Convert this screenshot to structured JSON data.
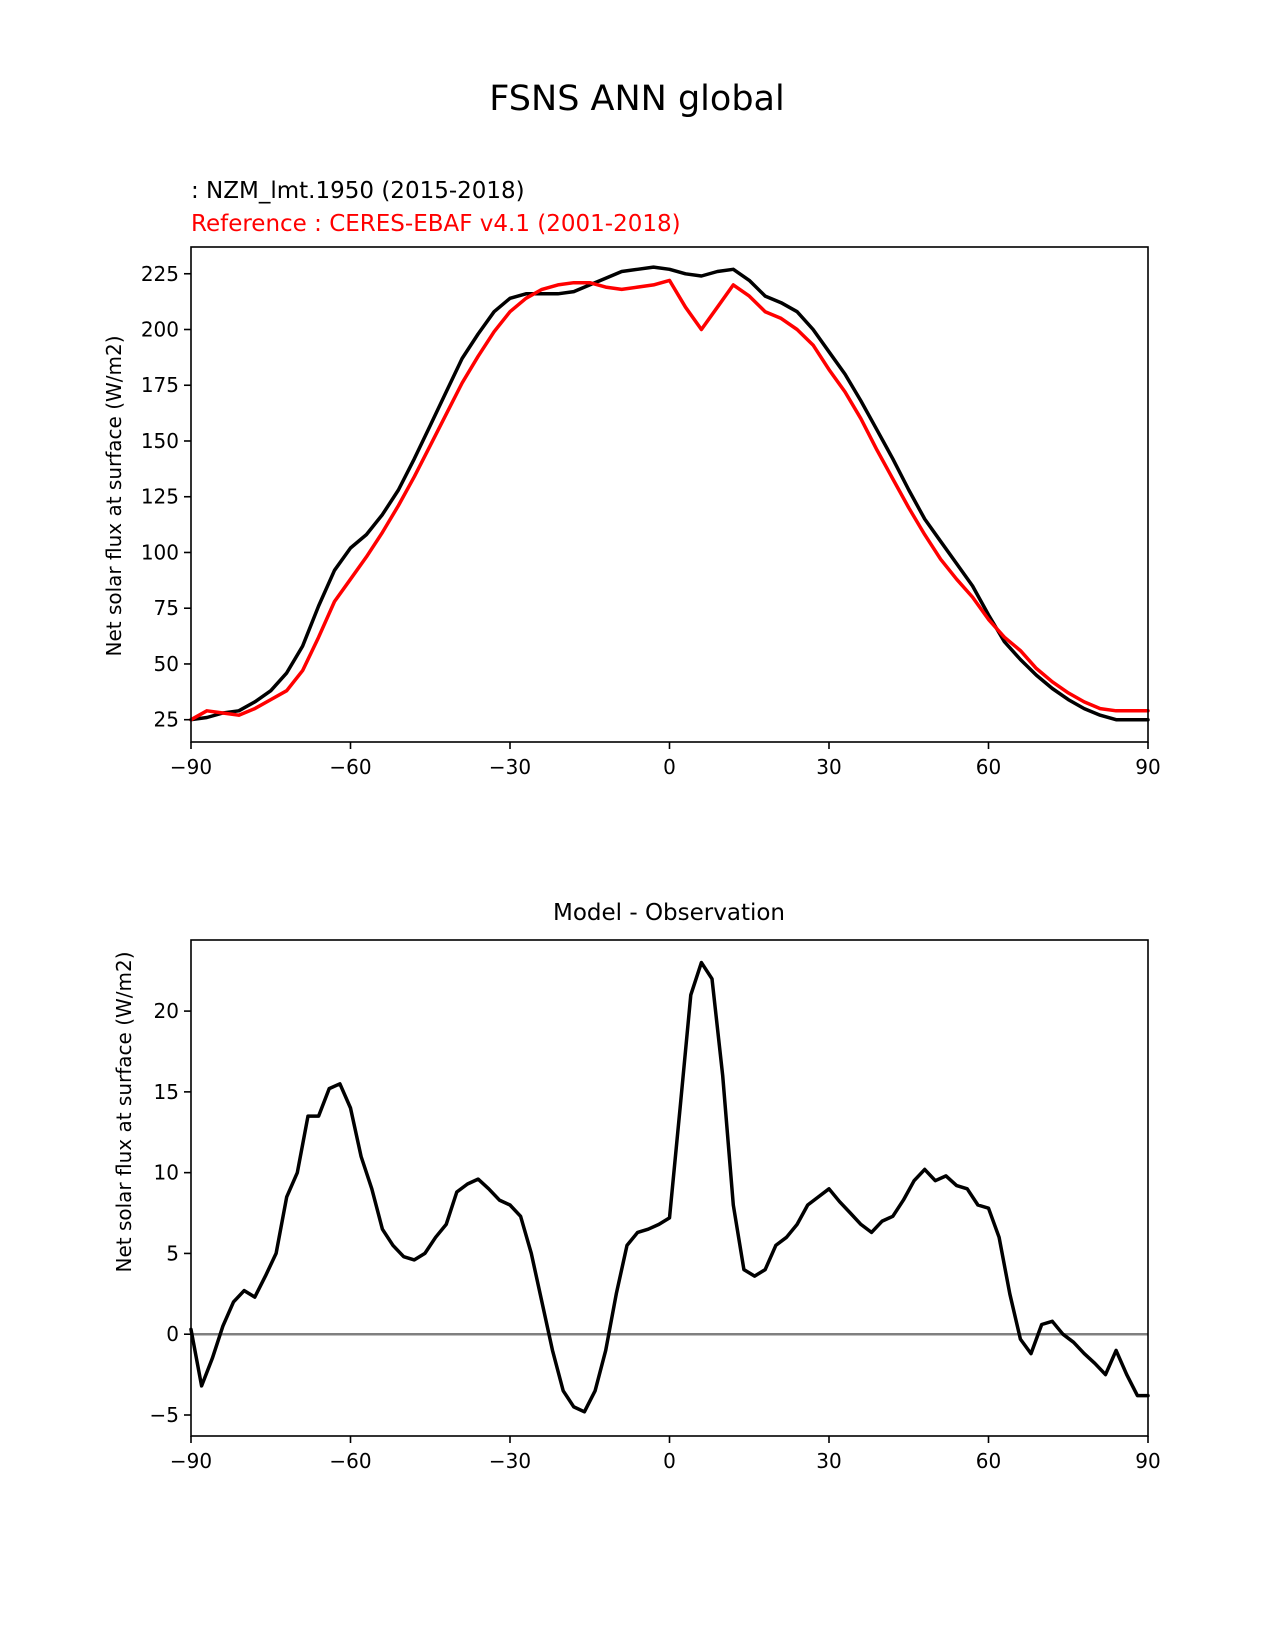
{
  "figure": {
    "title": "FSNS ANN global"
  },
  "chart_data": [
    {
      "type": "line",
      "test_label": " : NZM_lmt.1950 (2015-2018)",
      "reference_label": "Reference : CERES-EBAF v4.1 (2001-2018)",
      "xlabel": "",
      "ylabel": "Net solar flux at surface (W/m2)",
      "xlim": [
        -90,
        90
      ],
      "ylim": [
        15,
        237
      ],
      "xticks": [
        -90,
        -60,
        -30,
        0,
        30,
        60,
        90
      ],
      "xtick_labels": [
        "−90",
        "−60",
        "−30",
        "0",
        "30",
        "60",
        "90"
      ],
      "yticks": [
        25,
        50,
        75,
        100,
        125,
        150,
        175,
        200,
        225
      ],
      "ytick_labels": [
        "25",
        "50",
        "75",
        "100",
        "125",
        "150",
        "175",
        "200",
        "225"
      ],
      "series": [
        {
          "name": "NZM_lmt.1950 (2015-2018)",
          "color": "#000000",
          "x": [
            -90,
            -87,
            -84,
            -81,
            -78,
            -75,
            -72,
            -69,
            -66,
            -63,
            -60,
            -57,
            -54,
            -51,
            -48,
            -45,
            -42,
            -39,
            -36,
            -33,
            -30,
            -27,
            -24,
            -21,
            -18,
            -15,
            -12,
            -9,
            -6,
            -3,
            0,
            3,
            6,
            9,
            12,
            15,
            18,
            21,
            24,
            27,
            30,
            33,
            36,
            39,
            42,
            45,
            48,
            51,
            54,
            57,
            60,
            63,
            66,
            69,
            72,
            75,
            78,
            81,
            84,
            87,
            90
          ],
          "y": [
            25,
            26,
            28,
            29,
            33,
            38,
            46,
            58,
            76,
            92,
            102,
            108,
            117,
            128,
            142,
            157,
            172,
            187,
            198,
            208,
            214,
            216,
            216,
            216,
            217,
            220,
            223,
            226,
            227,
            228,
            227,
            225,
            224,
            226,
            227,
            222,
            215,
            212,
            208,
            200,
            190,
            180,
            168,
            155,
            142,
            128,
            115,
            105,
            95,
            85,
            72,
            60,
            52,
            45,
            39,
            34,
            30,
            27,
            25,
            25,
            25
          ]
        },
        {
          "name": "Reference : CERES-EBAF v4.1 (2001-2018)",
          "color": "#ff0000",
          "x": [
            -90,
            -87,
            -84,
            -81,
            -78,
            -75,
            -72,
            -69,
            -66,
            -63,
            -60,
            -57,
            -54,
            -51,
            -48,
            -45,
            -42,
            -39,
            -36,
            -33,
            -30,
            -27,
            -24,
            -21,
            -18,
            -15,
            -12,
            -9,
            -6,
            -3,
            0,
            3,
            6,
            9,
            12,
            15,
            18,
            21,
            24,
            27,
            30,
            33,
            36,
            39,
            42,
            45,
            48,
            51,
            54,
            57,
            60,
            63,
            66,
            69,
            72,
            75,
            78,
            81,
            84,
            87,
            90
          ],
          "y": [
            25,
            29,
            28,
            27,
            30,
            34,
            38,
            47,
            62,
            78,
            88,
            98,
            109,
            121,
            134,
            148,
            162,
            176,
            188,
            199,
            208,
            214,
            218,
            220,
            221,
            221,
            219,
            218,
            219,
            220,
            222,
            210,
            200,
            210,
            220,
            215,
            208,
            205,
            200,
            193,
            182,
            172,
            160,
            146,
            133,
            120,
            108,
            97,
            88,
            80,
            70,
            62,
            56,
            48,
            42,
            37,
            33,
            30,
            29,
            29,
            29
          ]
        }
      ]
    },
    {
      "type": "line",
      "title": "Model - Observation",
      "xlabel": "",
      "ylabel": "Net solar flux at surface (W/m2)",
      "xlim": [
        -90,
        90
      ],
      "ylim": [
        -6.3,
        24.4
      ],
      "xticks": [
        -90,
        -60,
        -30,
        0,
        30,
        60,
        90
      ],
      "xtick_labels": [
        "−90",
        "−60",
        "−30",
        "0",
        "30",
        "60",
        "90"
      ],
      "yticks": [
        -5,
        0,
        5,
        10,
        15,
        20
      ],
      "ytick_labels": [
        "−5",
        "0",
        "5",
        "10",
        "15",
        "20"
      ],
      "zero_line_color": "#808080",
      "series": [
        {
          "name": "Model - Observation",
          "color": "#000000",
          "x": [
            -90,
            -88,
            -86,
            -84,
            -82,
            -80,
            -78,
            -76,
            -74,
            -72,
            -70,
            -68,
            -66,
            -64,
            -62,
            -60,
            -58,
            -56,
            -54,
            -52,
            -50,
            -48,
            -46,
            -44,
            -42,
            -40,
            -38,
            -36,
            -34,
            -32,
            -30,
            -28,
            -26,
            -24,
            -22,
            -20,
            -18,
            -16,
            -14,
            -12,
            -10,
            -8,
            -6,
            -4,
            -2,
            0,
            2,
            4,
            6,
            8,
            10,
            12,
            14,
            16,
            18,
            20,
            22,
            24,
            26,
            28,
            30,
            32,
            34,
            36,
            38,
            40,
            42,
            44,
            46,
            48,
            50,
            52,
            54,
            56,
            58,
            60,
            62,
            64,
            66,
            68,
            70,
            72,
            74,
            76,
            78,
            80,
            82,
            84,
            86,
            88,
            90
          ],
          "y": [
            0.3,
            -3.2,
            -1.5,
            0.5,
            2.0,
            2.7,
            2.3,
            3.6,
            5.0,
            8.5,
            10.0,
            13.5,
            13.5,
            15.2,
            15.5,
            14.0,
            11.0,
            9.0,
            6.5,
            5.5,
            4.8,
            4.6,
            5.0,
            6.0,
            6.8,
            8.8,
            9.3,
            9.6,
            9.0,
            8.3,
            8.0,
            7.3,
            5.0,
            2.0,
            -1.0,
            -3.5,
            -4.5,
            -4.8,
            -3.5,
            -1.0,
            2.5,
            5.5,
            6.3,
            6.5,
            6.8,
            7.2,
            14.0,
            21.0,
            23.0,
            22.0,
            16.0,
            8.0,
            4.0,
            3.6,
            4.0,
            5.5,
            6.0,
            6.8,
            8.0,
            8.5,
            9.0,
            8.2,
            7.5,
            6.8,
            6.3,
            7.0,
            7.3,
            8.3,
            9.5,
            10.2,
            9.5,
            9.8,
            9.2,
            9.0,
            8.0,
            7.8,
            6.0,
            2.5,
            -0.3,
            -1.2,
            0.6,
            0.8,
            0.0,
            -0.5,
            -1.2,
            -1.8,
            -2.5,
            -1.0,
            -2.5,
            -3.8,
            -3.8
          ]
        }
      ]
    }
  ]
}
